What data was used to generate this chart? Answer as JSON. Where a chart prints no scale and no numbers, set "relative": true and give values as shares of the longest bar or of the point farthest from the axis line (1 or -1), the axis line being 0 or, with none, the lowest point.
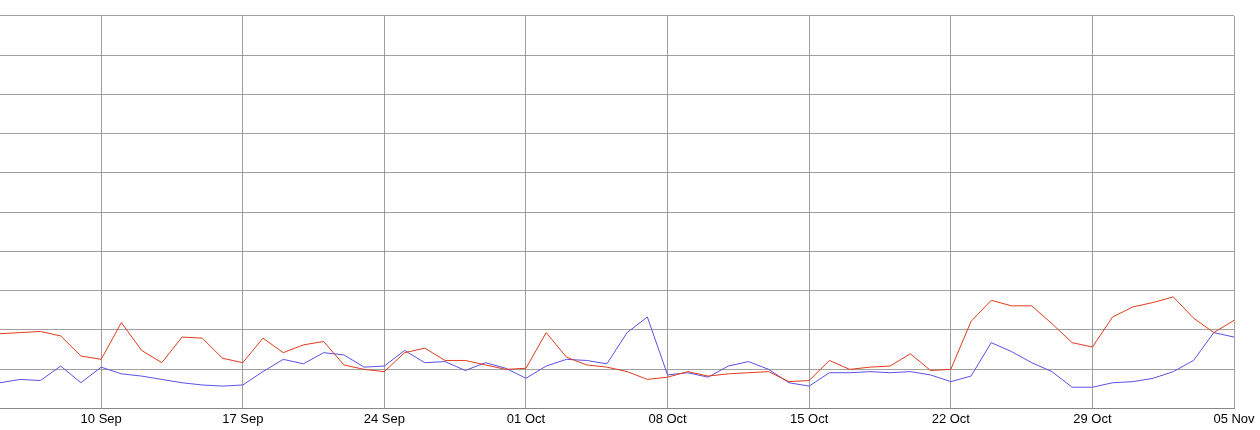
{
  "chart_data": {
    "type": "line",
    "relative": true,
    "grid": true,
    "legend": false,
    "marker": "none",
    "line_style": "solid",
    "x": [
      "--09-05",
      "--09-06",
      "--09-07",
      "--09-08",
      "--09-09",
      "--09-10",
      "--09-11",
      "--09-12",
      "--09-13",
      "--09-14",
      "--09-15",
      "--09-16",
      "--09-17",
      "--09-18",
      "--09-19",
      "--09-20",
      "--09-21",
      "--09-22",
      "--09-23",
      "--09-24",
      "--09-25",
      "--09-26",
      "--09-27",
      "--09-28",
      "--09-29",
      "--09-30",
      "--10-01",
      "--10-02",
      "--10-03",
      "--10-04",
      "--10-05",
      "--10-06",
      "--10-07",
      "--10-08",
      "--10-09",
      "--10-10",
      "--10-11",
      "--10-12",
      "--10-13",
      "--10-14",
      "--10-15",
      "--10-16",
      "--10-17",
      "--10-18",
      "--10-19",
      "--10-20",
      "--10-21",
      "--10-22",
      "--10-23",
      "--10-24",
      "--10-25",
      "--10-26",
      "--10-27",
      "--10-28",
      "--10-29",
      "--10-30",
      "--10-31",
      "--11-01",
      "--11-02",
      "--11-03",
      "--11-04",
      "--11-05"
    ],
    "xlim": [
      "--09-05",
      "--11-05"
    ],
    "xticks": [
      {
        "value": "--09-10",
        "label": "10 Sep"
      },
      {
        "value": "--09-17",
        "label": "17 Sep"
      },
      {
        "value": "--09-24",
        "label": "24 Sep"
      },
      {
        "value": "--10-01",
        "label": "01 Oct"
      },
      {
        "value": "--10-08",
        "label": "08 Oct"
      },
      {
        "value": "--10-15",
        "label": "15 Oct"
      },
      {
        "value": "--10-22",
        "label": "22 Oct"
      },
      {
        "value": "--10-29",
        "label": "29 Oct"
      },
      {
        "value": "--11-05",
        "label": "05 Nov"
      }
    ],
    "series": [
      {
        "color": "#e03c1e",
        "values": [
          0.67,
          0.68,
          0.69,
          0.65,
          0.47,
          0.44,
          0.77,
          0.52,
          0.41,
          0.64,
          0.63,
          0.45,
          0.41,
          0.63,
          0.5,
          0.57,
          0.6,
          0.39,
          0.35,
          0.33,
          0.5,
          0.54,
          0.43,
          0.43,
          0.39,
          0.35,
          0.36,
          0.68,
          0.46,
          0.39,
          0.37,
          0.33,
          0.26,
          0.28,
          0.33,
          0.29,
          0.31,
          0.32,
          0.33,
          0.24,
          0.25,
          0.43,
          0.35,
          0.37,
          0.38,
          0.49,
          0.34,
          0.35,
          0.78,
          0.97,
          0.92,
          0.92,
          0.76,
          0.59,
          0.55,
          0.82,
          0.91,
          0.95,
          1,
          0.81,
          0.68,
          0.79
        ]
      },
      {
        "color": "#5b50e6",
        "values": [
          0.23,
          0.26,
          0.25,
          0.38,
          0.23,
          0.37,
          0.31,
          0.29,
          0.26,
          0.23,
          0.21,
          0.2,
          0.21,
          0.33,
          0.44,
          0.4,
          0.5,
          0.48,
          0.37,
          0.38,
          0.52,
          0.41,
          0.42,
          0.34,
          0.41,
          0.36,
          0.27,
          0.38,
          0.44,
          0.43,
          0.4,
          0.68,
          0.82,
          0.3,
          0.32,
          0.28,
          0.38,
          0.42,
          0.35,
          0.23,
          0.2,
          0.32,
          0.32,
          0.33,
          0.32,
          0.33,
          0.3,
          0.24,
          0.29,
          0.59,
          0.51,
          0.41,
          0.33,
          0.19,
          0.19,
          0.23,
          0.24,
          0.27,
          0.33,
          0.43,
          0.68,
          0.64
        ]
      }
    ]
  }
}
